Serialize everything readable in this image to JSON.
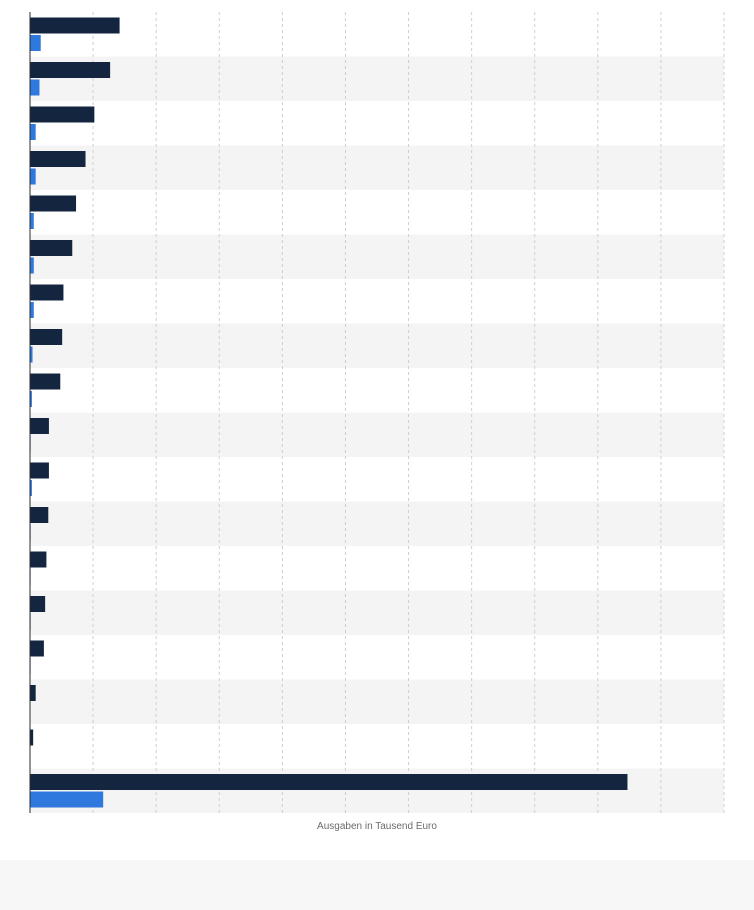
{
  "chart_data": {
    "type": "bar",
    "orientation": "horizontal",
    "xlabel": "Ausgaben in Tausend Euro",
    "ylabel": "",
    "title": "",
    "categories": [
      "",
      "",
      "",
      "",
      "",
      "",
      "",
      "",
      "",
      "",
      "",
      "",
      "",
      "",
      "",
      "",
      "",
      ""
    ],
    "series": [
      {
        "color": "#13253f",
        "values": [
          710,
          635,
          510,
          440,
          365,
          335,
          265,
          255,
          240,
          150,
          150,
          145,
          130,
          120,
          110,
          45,
          25,
          4735
        ]
      },
      {
        "color": "#2f78dd",
        "values": [
          85,
          75,
          45,
          45,
          30,
          30,
          30,
          20,
          15,
          5,
          15,
          5,
          5,
          5,
          5,
          0,
          0,
          580
        ]
      }
    ],
    "xlim": [
      0,
      5500
    ],
    "x_step": 500,
    "grid": true,
    "tick_labels_shown": false,
    "legend": "none"
  }
}
